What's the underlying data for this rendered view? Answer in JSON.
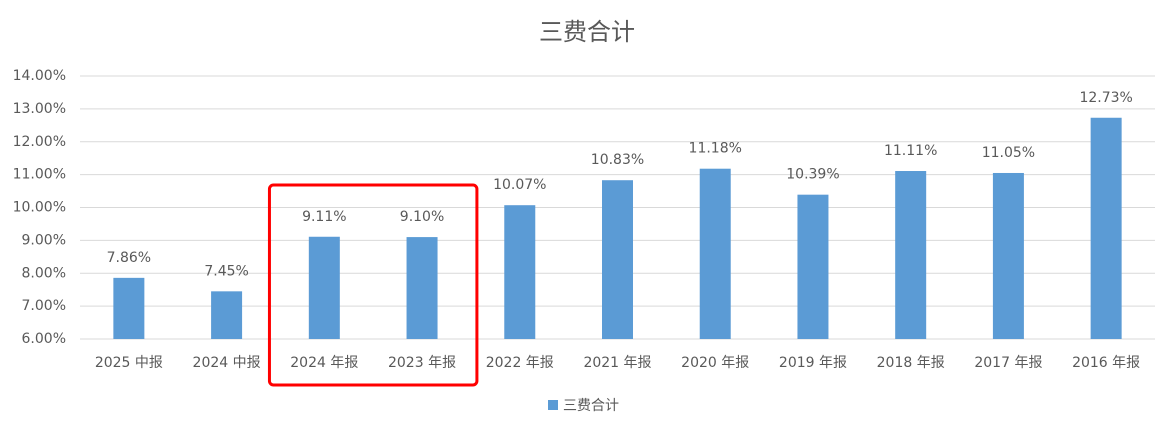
{
  "chart_data": {
    "type": "bar",
    "title": "三费合计",
    "categories": [
      "2025 中报",
      "2024 中报",
      "2024 年报",
      "2023 年报",
      "2022 年报",
      "2021 年报",
      "2020 年报",
      "2019 年报",
      "2018 年报",
      "2017 年报",
      "2016 年报"
    ],
    "series": [
      {
        "name": "三费合计",
        "color": "#5b9bd5",
        "values": [
          7.86,
          7.45,
          9.11,
          9.1,
          10.07,
          10.83,
          11.18,
          10.39,
          11.11,
          11.05,
          12.73
        ],
        "value_labels": [
          "7.86%",
          "7.45%",
          "9.11%",
          "9.10%",
          "10.07%",
          "10.83%",
          "11.18%",
          "10.39%",
          "11.11%",
          "11.05%",
          "12.73%"
        ]
      }
    ],
    "ylim": [
      6,
      14
    ],
    "yticks": [
      {
        "value": 6,
        "label": "6.00%"
      },
      {
        "value": 7,
        "label": "7.00%"
      },
      {
        "value": 8,
        "label": "8.00%"
      },
      {
        "value": 9,
        "label": "9.00%"
      },
      {
        "value": 10,
        "label": "10.00%"
      },
      {
        "value": 11,
        "label": "11.00%"
      },
      {
        "value": 12,
        "label": "12.00%"
      },
      {
        "value": 13,
        "label": "13.00%"
      },
      {
        "value": 14,
        "label": "14.00%"
      }
    ],
    "grid": true,
    "legend": "bottom"
  }
}
